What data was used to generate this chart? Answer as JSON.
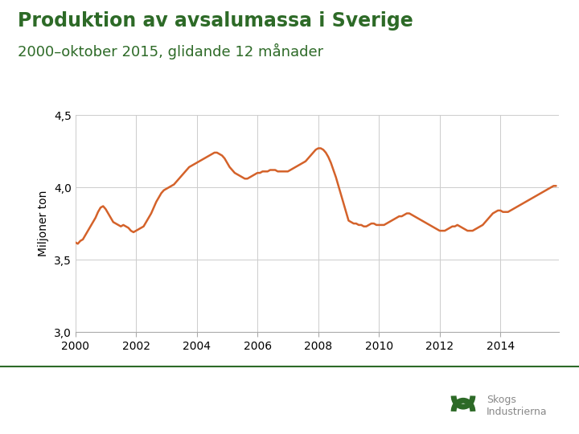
{
  "title_line1": "Produktion av avsalumassa i Sverige",
  "title_line2": "2000–oktober 2015, glidande 12 månader",
  "ylabel": "Miljoner ton",
  "title_color": "#2d6a27",
  "subtitle_color": "#2d6a27",
  "line_color": "#d4622a",
  "grid_color": "#cccccc",
  "bg_color": "#ffffff",
  "ylim": [
    3.0,
    4.5
  ],
  "ytick_labels": [
    "3,0",
    "3,5",
    "4,0",
    "4,5"
  ],
  "xlim_start": 2000.0,
  "xlim_end": 2015.92,
  "xticks": [
    2000,
    2002,
    2004,
    2006,
    2008,
    2010,
    2012,
    2014
  ],
  "footer_line_color": "#2d6a27",
  "data": [
    [
      2000.0,
      3.62
    ],
    [
      2000.083,
      3.61
    ],
    [
      2000.167,
      3.63
    ],
    [
      2000.25,
      3.64
    ],
    [
      2000.333,
      3.67
    ],
    [
      2000.417,
      3.7
    ],
    [
      2000.5,
      3.73
    ],
    [
      2000.583,
      3.76
    ],
    [
      2000.667,
      3.79
    ],
    [
      2000.75,
      3.83
    ],
    [
      2000.833,
      3.86
    ],
    [
      2000.917,
      3.87
    ],
    [
      2001.0,
      3.85
    ],
    [
      2001.083,
      3.82
    ],
    [
      2001.167,
      3.79
    ],
    [
      2001.25,
      3.76
    ],
    [
      2001.333,
      3.75
    ],
    [
      2001.417,
      3.74
    ],
    [
      2001.5,
      3.73
    ],
    [
      2001.583,
      3.74
    ],
    [
      2001.667,
      3.73
    ],
    [
      2001.75,
      3.72
    ],
    [
      2001.833,
      3.7
    ],
    [
      2001.917,
      3.69
    ],
    [
      2002.0,
      3.7
    ],
    [
      2002.083,
      3.71
    ],
    [
      2002.167,
      3.72
    ],
    [
      2002.25,
      3.73
    ],
    [
      2002.333,
      3.76
    ],
    [
      2002.417,
      3.79
    ],
    [
      2002.5,
      3.82
    ],
    [
      2002.583,
      3.86
    ],
    [
      2002.667,
      3.9
    ],
    [
      2002.75,
      3.93
    ],
    [
      2002.833,
      3.96
    ],
    [
      2002.917,
      3.98
    ],
    [
      2003.0,
      3.99
    ],
    [
      2003.083,
      4.0
    ],
    [
      2003.167,
      4.01
    ],
    [
      2003.25,
      4.02
    ],
    [
      2003.333,
      4.04
    ],
    [
      2003.417,
      4.06
    ],
    [
      2003.5,
      4.08
    ],
    [
      2003.583,
      4.1
    ],
    [
      2003.667,
      4.12
    ],
    [
      2003.75,
      4.14
    ],
    [
      2003.833,
      4.15
    ],
    [
      2003.917,
      4.16
    ],
    [
      2004.0,
      4.17
    ],
    [
      2004.083,
      4.18
    ],
    [
      2004.167,
      4.19
    ],
    [
      2004.25,
      4.2
    ],
    [
      2004.333,
      4.21
    ],
    [
      2004.417,
      4.22
    ],
    [
      2004.5,
      4.23
    ],
    [
      2004.583,
      4.24
    ],
    [
      2004.667,
      4.24
    ],
    [
      2004.75,
      4.23
    ],
    [
      2004.833,
      4.22
    ],
    [
      2004.917,
      4.2
    ],
    [
      2005.0,
      4.17
    ],
    [
      2005.083,
      4.14
    ],
    [
      2005.167,
      4.12
    ],
    [
      2005.25,
      4.1
    ],
    [
      2005.333,
      4.09
    ],
    [
      2005.417,
      4.08
    ],
    [
      2005.5,
      4.07
    ],
    [
      2005.583,
      4.06
    ],
    [
      2005.667,
      4.06
    ],
    [
      2005.75,
      4.07
    ],
    [
      2005.833,
      4.08
    ],
    [
      2005.917,
      4.09
    ],
    [
      2006.0,
      4.1
    ],
    [
      2006.083,
      4.1
    ],
    [
      2006.167,
      4.11
    ],
    [
      2006.25,
      4.11
    ],
    [
      2006.333,
      4.11
    ],
    [
      2006.417,
      4.12
    ],
    [
      2006.5,
      4.12
    ],
    [
      2006.583,
      4.12
    ],
    [
      2006.667,
      4.11
    ],
    [
      2006.75,
      4.11
    ],
    [
      2006.833,
      4.11
    ],
    [
      2006.917,
      4.11
    ],
    [
      2007.0,
      4.11
    ],
    [
      2007.083,
      4.12
    ],
    [
      2007.167,
      4.13
    ],
    [
      2007.25,
      4.14
    ],
    [
      2007.333,
      4.15
    ],
    [
      2007.417,
      4.16
    ],
    [
      2007.5,
      4.17
    ],
    [
      2007.583,
      4.18
    ],
    [
      2007.667,
      4.2
    ],
    [
      2007.75,
      4.22
    ],
    [
      2007.833,
      4.24
    ],
    [
      2007.917,
      4.26
    ],
    [
      2008.0,
      4.27
    ],
    [
      2008.083,
      4.27
    ],
    [
      2008.167,
      4.26
    ],
    [
      2008.25,
      4.24
    ],
    [
      2008.333,
      4.21
    ],
    [
      2008.417,
      4.17
    ],
    [
      2008.5,
      4.12
    ],
    [
      2008.583,
      4.07
    ],
    [
      2008.667,
      4.01
    ],
    [
      2008.75,
      3.95
    ],
    [
      2008.833,
      3.89
    ],
    [
      2008.917,
      3.83
    ],
    [
      2009.0,
      3.77
    ],
    [
      2009.083,
      3.76
    ],
    [
      2009.167,
      3.75
    ],
    [
      2009.25,
      3.75
    ],
    [
      2009.333,
      3.74
    ],
    [
      2009.417,
      3.74
    ],
    [
      2009.5,
      3.73
    ],
    [
      2009.583,
      3.73
    ],
    [
      2009.667,
      3.74
    ],
    [
      2009.75,
      3.75
    ],
    [
      2009.833,
      3.75
    ],
    [
      2009.917,
      3.74
    ],
    [
      2010.0,
      3.74
    ],
    [
      2010.083,
      3.74
    ],
    [
      2010.167,
      3.74
    ],
    [
      2010.25,
      3.75
    ],
    [
      2010.333,
      3.76
    ],
    [
      2010.417,
      3.77
    ],
    [
      2010.5,
      3.78
    ],
    [
      2010.583,
      3.79
    ],
    [
      2010.667,
      3.8
    ],
    [
      2010.75,
      3.8
    ],
    [
      2010.833,
      3.81
    ],
    [
      2010.917,
      3.82
    ],
    [
      2011.0,
      3.82
    ],
    [
      2011.083,
      3.81
    ],
    [
      2011.167,
      3.8
    ],
    [
      2011.25,
      3.79
    ],
    [
      2011.333,
      3.78
    ],
    [
      2011.417,
      3.77
    ],
    [
      2011.5,
      3.76
    ],
    [
      2011.583,
      3.75
    ],
    [
      2011.667,
      3.74
    ],
    [
      2011.75,
      3.73
    ],
    [
      2011.833,
      3.72
    ],
    [
      2011.917,
      3.71
    ],
    [
      2012.0,
      3.7
    ],
    [
      2012.083,
      3.7
    ],
    [
      2012.167,
      3.7
    ],
    [
      2012.25,
      3.71
    ],
    [
      2012.333,
      3.72
    ],
    [
      2012.417,
      3.73
    ],
    [
      2012.5,
      3.73
    ],
    [
      2012.583,
      3.74
    ],
    [
      2012.667,
      3.73
    ],
    [
      2012.75,
      3.72
    ],
    [
      2012.833,
      3.71
    ],
    [
      2012.917,
      3.7
    ],
    [
      2013.0,
      3.7
    ],
    [
      2013.083,
      3.7
    ],
    [
      2013.167,
      3.71
    ],
    [
      2013.25,
      3.72
    ],
    [
      2013.333,
      3.73
    ],
    [
      2013.417,
      3.74
    ],
    [
      2013.5,
      3.76
    ],
    [
      2013.583,
      3.78
    ],
    [
      2013.667,
      3.8
    ],
    [
      2013.75,
      3.82
    ],
    [
      2013.833,
      3.83
    ],
    [
      2013.917,
      3.84
    ],
    [
      2014.0,
      3.84
    ],
    [
      2014.083,
      3.83
    ],
    [
      2014.167,
      3.83
    ],
    [
      2014.25,
      3.83
    ],
    [
      2014.333,
      3.84
    ],
    [
      2014.417,
      3.85
    ],
    [
      2014.5,
      3.86
    ],
    [
      2014.583,
      3.87
    ],
    [
      2014.667,
      3.88
    ],
    [
      2014.75,
      3.89
    ],
    [
      2014.833,
      3.9
    ],
    [
      2014.917,
      3.91
    ],
    [
      2015.0,
      3.92
    ],
    [
      2015.083,
      3.93
    ],
    [
      2015.167,
      3.94
    ],
    [
      2015.25,
      3.95
    ],
    [
      2015.333,
      3.96
    ],
    [
      2015.417,
      3.97
    ],
    [
      2015.5,
      3.98
    ],
    [
      2015.583,
      3.99
    ],
    [
      2015.667,
      4.0
    ],
    [
      2015.75,
      4.01
    ],
    [
      2015.833,
      4.01
    ]
  ]
}
